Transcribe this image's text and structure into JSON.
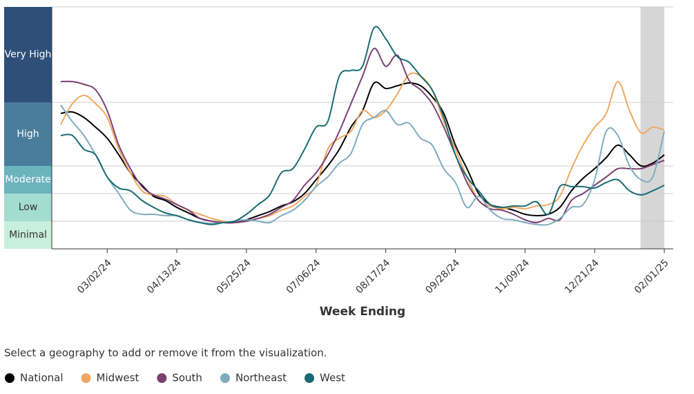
{
  "chart_data": {
    "type": "line",
    "x_label": "Week Ending",
    "prompt": "Select a geography to add or remove it from the visualization.",
    "categories": [
      null,
      null,
      null,
      null,
      "03/02/24",
      null,
      null,
      null,
      null,
      null,
      "04/13/24",
      null,
      null,
      null,
      null,
      null,
      "05/25/24",
      null,
      null,
      null,
      null,
      null,
      "07/06/24",
      null,
      null,
      null,
      null,
      null,
      "08/17/24",
      null,
      null,
      null,
      null,
      null,
      "09/28/24",
      null,
      null,
      null,
      null,
      null,
      "11/09/24",
      null,
      null,
      null,
      null,
      null,
      "12/21/24",
      null,
      null,
      null,
      null,
      null,
      "02/01/25"
    ],
    "ylim": [
      0,
      8.75
    ],
    "levels": [
      {
        "name": "Minimal",
        "from": 0,
        "to": 1,
        "color": "#c8eede",
        "text_color": "#333333"
      },
      {
        "name": "Low",
        "from": 1,
        "to": 2,
        "color": "#a3dcd0",
        "text_color": "#333333"
      },
      {
        "name": "Moderate",
        "from": 2,
        "to": 3,
        "color": "#6bb3bd",
        "text_color": "#ffffff"
      },
      {
        "name": "High",
        "from": 3,
        "to": 5.3,
        "color": "#4a7d9c",
        "text_color": "#ffffff"
      },
      {
        "name": "Very High",
        "from": 5.3,
        "to": 8.75,
        "color": "#2e4f78",
        "text_color": "#ffffff"
      }
    ],
    "shaded_from_index": 50,
    "series": [
      {
        "name": "National",
        "color": "#000000",
        "values": [
          4.9,
          4.95,
          4.75,
          4.4,
          4.0,
          3.4,
          2.75,
          2.3,
          1.9,
          1.75,
          1.5,
          1.3,
          1.1,
          1.0,
          0.95,
          0.95,
          1.05,
          1.2,
          1.35,
          1.55,
          1.7,
          2.0,
          2.5,
          3.0,
          3.6,
          4.4,
          5.0,
          6.0,
          5.8,
          5.9,
          6.0,
          5.9,
          5.5,
          4.9,
          3.75,
          2.9,
          2.0,
          1.6,
          1.5,
          1.4,
          1.25,
          1.2,
          1.25,
          1.5,
          2.1,
          2.55,
          2.9,
          3.3,
          3.75,
          3.4,
          3.0,
          3.1,
          3.4
        ]
      },
      {
        "name": "Midwest",
        "color": "#f0a860",
        "values": [
          4.5,
          5.25,
          5.55,
          5.25,
          4.75,
          3.6,
          2.75,
          2.1,
          1.95,
          1.9,
          1.6,
          1.4,
          1.25,
          1.1,
          1.0,
          0.95,
          1.0,
          1.1,
          1.2,
          1.4,
          1.55,
          1.9,
          2.3,
          3.6,
          4.0,
          4.25,
          5.0,
          4.75,
          5.0,
          5.6,
          6.3,
          6.25,
          5.75,
          4.6,
          3.6,
          2.6,
          1.75,
          1.55,
          1.45,
          1.5,
          1.45,
          1.55,
          1.6,
          1.9,
          2.9,
          3.75,
          4.4,
          4.9,
          6.05,
          5.0,
          4.2,
          4.4,
          4.3
        ]
      },
      {
        "name": "South",
        "color": "#7b3f73",
        "values": [
          6.05,
          6.05,
          5.95,
          5.75,
          5.0,
          3.75,
          2.9,
          2.25,
          1.95,
          1.8,
          1.6,
          1.4,
          1.1,
          1.0,
          0.95,
          0.95,
          1.0,
          1.1,
          1.25,
          1.5,
          1.75,
          2.3,
          2.75,
          3.4,
          4.25,
          5.25,
          6.25,
          7.25,
          6.6,
          7.0,
          6.1,
          5.75,
          5.25,
          4.4,
          3.4,
          2.4,
          1.75,
          1.45,
          1.4,
          1.25,
          1.05,
          0.95,
          1.1,
          1.05,
          1.75,
          2.0,
          2.3,
          2.6,
          2.9,
          2.9,
          2.9,
          3.05,
          3.2
        ]
      },
      {
        "name": "Northeast",
        "color": "#7fabc0",
        "values": [
          5.2,
          4.6,
          4.1,
          3.4,
          2.6,
          2.0,
          1.4,
          1.25,
          1.25,
          1.2,
          1.2,
          1.05,
          0.95,
          0.92,
          0.95,
          1.0,
          1.05,
          1.0,
          0.95,
          1.2,
          1.4,
          1.75,
          2.25,
          2.6,
          3.1,
          3.45,
          4.5,
          4.75,
          5.0,
          4.5,
          4.55,
          4.0,
          3.75,
          2.9,
          2.4,
          1.5,
          1.9,
          1.4,
          1.1,
          1.05,
          0.95,
          0.88,
          0.88,
          1.1,
          1.5,
          1.6,
          2.5,
          4.25,
          4.1,
          3.0,
          2.5,
          2.6,
          4.25
        ]
      },
      {
        "name": "West",
        "color": "#1a6b72",
        "values": [
          4.1,
          4.1,
          3.6,
          3.4,
          2.6,
          2.2,
          2.1,
          1.75,
          1.5,
          1.3,
          1.2,
          1.05,
          0.95,
          0.88,
          0.95,
          1.0,
          1.25,
          1.6,
          1.95,
          2.75,
          2.9,
          3.6,
          4.4,
          4.6,
          6.25,
          6.45,
          6.6,
          8.0,
          7.6,
          6.95,
          6.75,
          6.25,
          5.75,
          4.75,
          3.4,
          2.6,
          2.1,
          1.6,
          1.5,
          1.55,
          1.55,
          1.7,
          1.25,
          2.25,
          2.25,
          2.25,
          2.2,
          2.4,
          2.5,
          2.1,
          1.95,
          2.1,
          2.3
        ]
      }
    ]
  }
}
